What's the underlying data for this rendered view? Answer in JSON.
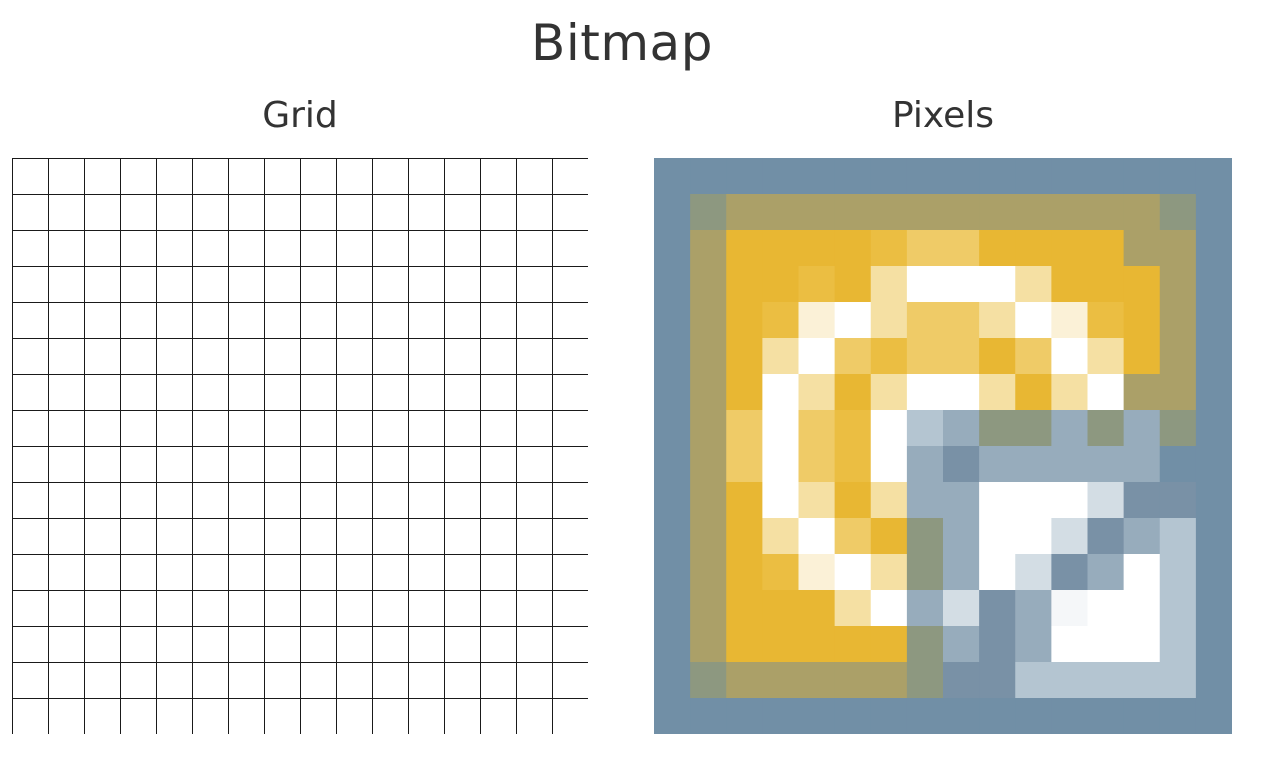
{
  "title": "Bitmap",
  "panels": {
    "grid": {
      "title": "Grid"
    },
    "pixels": {
      "title": "Pixels"
    }
  },
  "bitmap": {
    "size": 16,
    "palette": {
      "G": "#718fa6",
      "O": "#8d9880",
      "K": "#aba068",
      "Y": "#e8b733",
      "M": "#ebbe42",
      "N": "#efcb67",
      "L": "#f5e0a3",
      "C": "#fbf1d7",
      "W": "#ffffff",
      "D": "#7991a6",
      "A": "#97acbc",
      "B": "#b4c5d1",
      "E": "#d3dde4",
      "F": "#f5f7f9"
    },
    "rows": [
      "GGGGGGGGGGGGGGGG",
      "GOKKKKKKKKKKKKOG",
      "GKYYYYMNNYYYYKKG",
      "GKYYMYLWWWLYYYKG",
      "GKYMCWLNNLWCMYKG",
      "GKYLWNMNNYNWLYKG",
      "GKYWLYLWWLYLWKKG",
      "GKNWNMWBAOOAOAOG",
      "GKNWNMWADAAAAAGG",
      "GKYWLYLAAWWWEDDG",
      "GKYLWNYOAWWEDABG",
      "GKYMCWLOAWEDAWBG",
      "GKYYYLWAEDAFWWBG",
      "GKYYYYYOADAWWWBG",
      "GOKKKKKODDBBBBBG",
      "GGGGGGGGGGGGGGGG"
    ]
  }
}
